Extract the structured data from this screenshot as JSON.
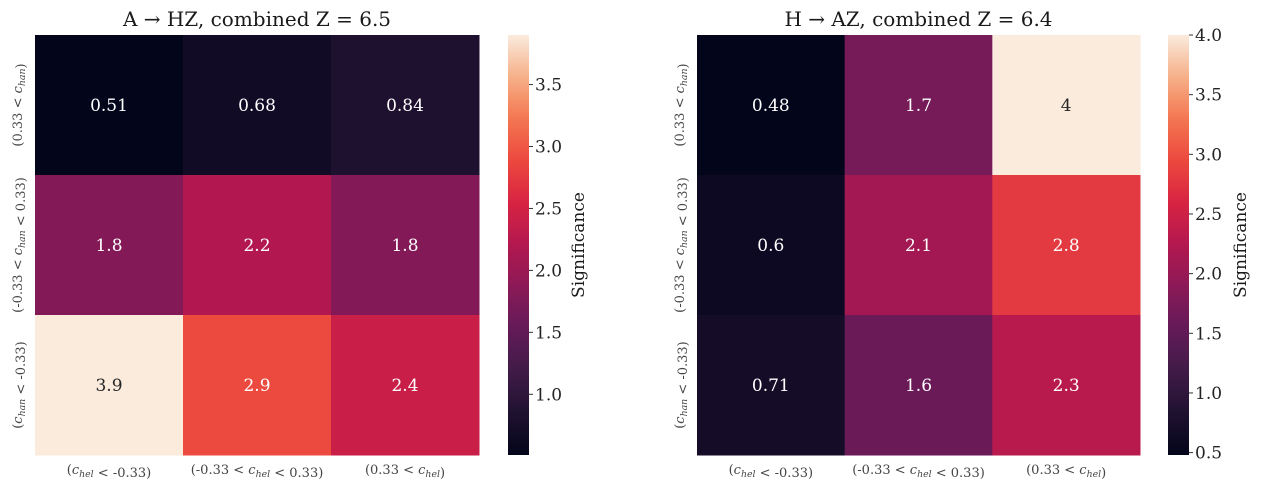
{
  "chart_data": [
    {
      "type": "heatmap",
      "title": "A → HZ, combined Z = 6.5",
      "rows": [
        "(0.33 < c_han)",
        "(-0.33 < c_han < 0.33)",
        "(c_han < -0.33)"
      ],
      "columns": [
        "(c_hel < -0.33)",
        "(-0.33 < c_hel < 0.33)",
        "(0.33 < c_hel)"
      ],
      "values": [
        [
          0.51,
          0.68,
          0.84
        ],
        [
          1.8,
          2.2,
          1.8
        ],
        [
          3.9,
          2.9,
          2.4
        ]
      ],
      "labels": [
        [
          "0.51",
          "0.68",
          "0.84"
        ],
        [
          "1.8",
          "2.2",
          "1.8"
        ],
        [
          "3.9",
          "2.9",
          "2.4"
        ]
      ],
      "colorbar": {
        "label": "Significance",
        "vmin": 0.51,
        "vmax": 3.9,
        "ticks": [
          1.0,
          1.5,
          2.0,
          2.5,
          3.0,
          3.5
        ],
        "tick_labels": [
          "1.0",
          "1.5",
          "2.0",
          "2.5",
          "3.0",
          "3.5"
        ]
      },
      "colormap": "rocket"
    },
    {
      "type": "heatmap",
      "title": "H → AZ, combined Z = 6.4",
      "rows": [
        "(0.33 < c_han)",
        "(-0.33 < c_han < 0.33)",
        "(c_han < -0.33)"
      ],
      "columns": [
        "(c_hel < -0.33)",
        "(-0.33 < c_hel < 0.33)",
        "(0.33 < c_hel)"
      ],
      "values": [
        [
          0.48,
          1.7,
          4.0
        ],
        [
          0.6,
          2.1,
          2.8
        ],
        [
          0.71,
          1.6,
          2.3
        ]
      ],
      "labels": [
        [
          "0.48",
          "1.7",
          "4"
        ],
        [
          "0.6",
          "2.1",
          "2.8"
        ],
        [
          "0.71",
          "1.6",
          "2.3"
        ]
      ],
      "colorbar": {
        "label": "Significance",
        "vmin": 0.48,
        "vmax": 4.0,
        "ticks": [
          0.5,
          1.0,
          1.5,
          2.0,
          2.5,
          3.0,
          3.5,
          4.0
        ],
        "tick_labels": [
          "0.5",
          "1.0",
          "1.5",
          "2.0",
          "2.5",
          "3.0",
          "3.5",
          "4.0"
        ]
      },
      "colormap": "rocket"
    }
  ]
}
